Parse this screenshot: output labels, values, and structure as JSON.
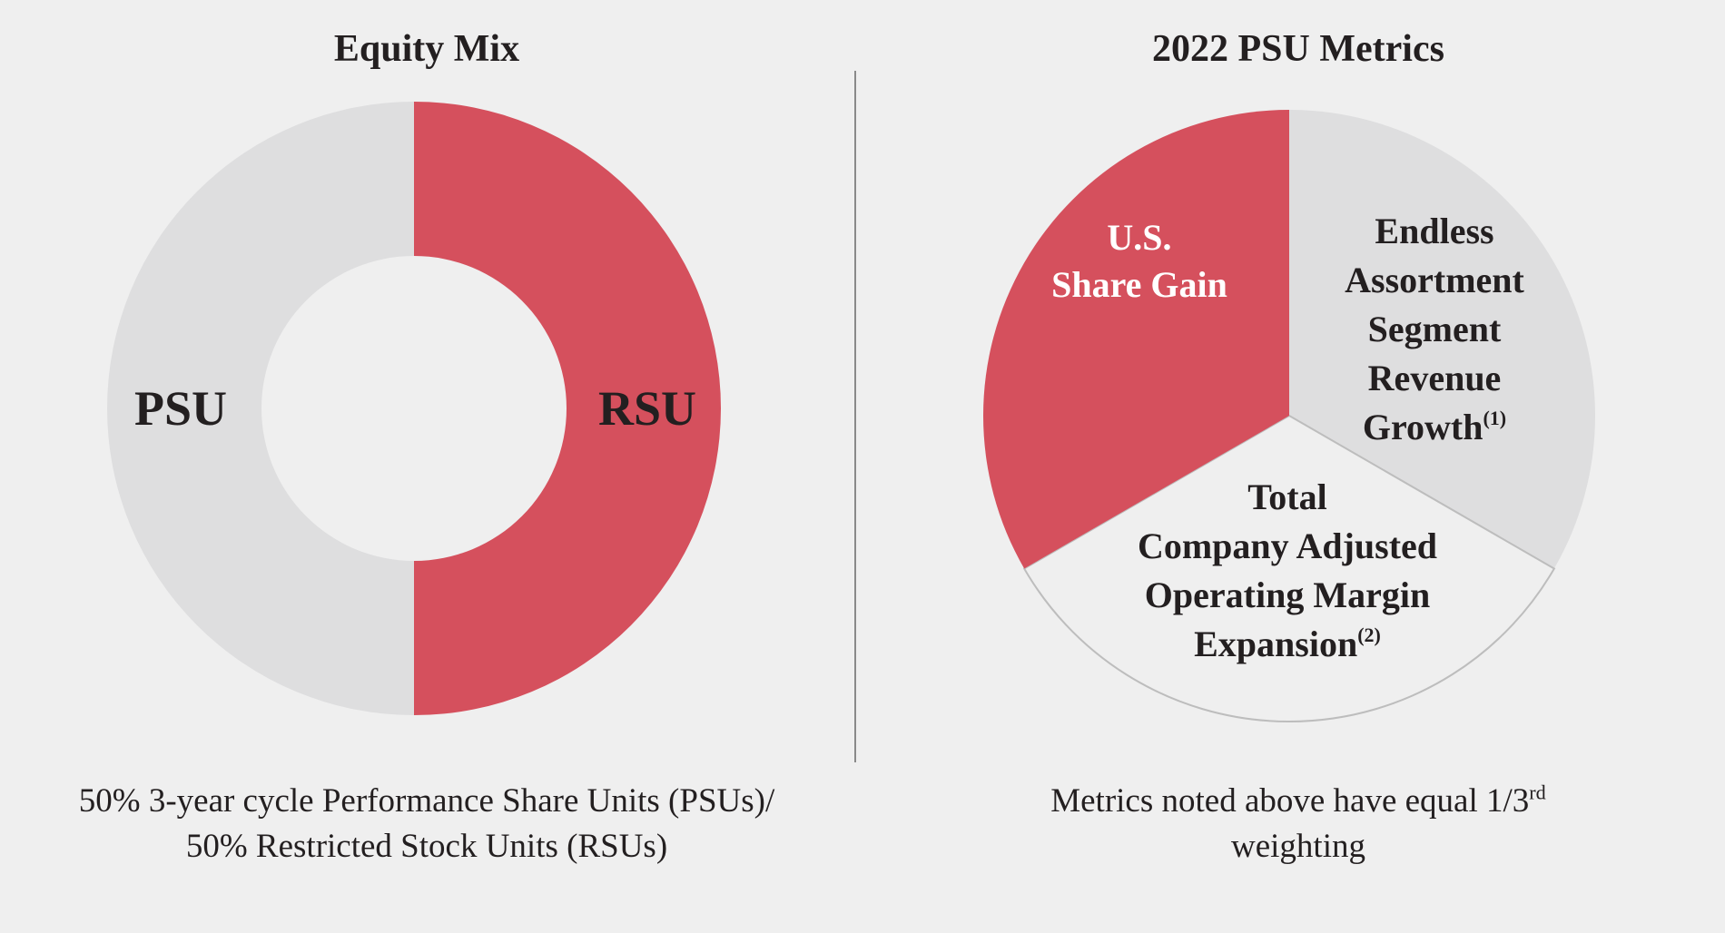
{
  "colors": {
    "red": "#d5505d",
    "grey": "#dededf",
    "light": "#efefef",
    "text": "#231f20",
    "white": "#ffffff"
  },
  "chart_data": [
    {
      "type": "pie",
      "variant": "donut",
      "title": "Equity Mix",
      "slices": [
        {
          "label": "RSU",
          "value": 50,
          "color": "#d5505d"
        },
        {
          "label": "PSU",
          "value": 50,
          "color": "#dededf"
        }
      ],
      "caption": {
        "line1": "50% 3-year cycle Performance Share Units (PSUs)/",
        "line2": "50% Restricted Stock Units (RSUs)"
      }
    },
    {
      "type": "pie",
      "title": "2022 PSU Metrics",
      "slices": [
        {
          "label": "Endless Assortment Segment Revenue Growth",
          "note": "(1)",
          "value": 33.33,
          "color": "#dededf",
          "lines": [
            "Endless",
            "Assortment",
            "Segment",
            "Revenue",
            "Growth"
          ]
        },
        {
          "label": "Total Company Adjusted Operating Margin Expansion",
          "note": "(2)",
          "value": 33.33,
          "color": "#efefef",
          "lines": [
            "Total",
            "Company Adjusted",
            "Operating Margin",
            "Expansion"
          ]
        },
        {
          "label": "U.S. Share Gain",
          "note": "",
          "value": 33.33,
          "color": "#d5505d",
          "lines": [
            "U.S.",
            "Share Gain"
          ]
        }
      ],
      "caption": {
        "line1_prefix": "Metrics noted above have equal 1/3",
        "line1_sup": "rd",
        "line2": "weighting"
      }
    }
  ]
}
